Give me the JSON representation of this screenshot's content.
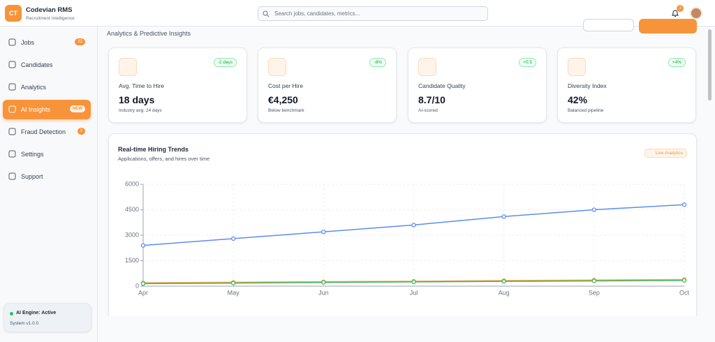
{
  "header": {
    "logo": "CT",
    "app_name": "Codevian RMS",
    "tagline": "Recruitment Intelligence",
    "search_placeholder": "Search jobs, candidates, metrics...",
    "notifications": "3"
  },
  "sidebar": {
    "items": [
      {
        "label": "Jobs",
        "badge": "12"
      },
      {
        "label": "Candidates"
      },
      {
        "label": "Analytics"
      },
      {
        "label": "AI Insights",
        "badge": "NEW"
      },
      {
        "label": "Fraud Detection",
        "badge": "3"
      },
      {
        "label": "Settings"
      },
      {
        "label": "Support"
      }
    ],
    "status": {
      "title": "AI Engine: Active",
      "version": "System v1.0.0"
    }
  },
  "page": {
    "subtitle": "Analytics & Predictive Insights"
  },
  "kpis": [
    {
      "label": "Avg. Time to Hire",
      "value": "18 days",
      "note": "Industry avg: 24 days",
      "change": "-2 days"
    },
    {
      "label": "Cost per Hire",
      "value": "€4,250",
      "note": "Below benchmark",
      "change": "-8%"
    },
    {
      "label": "Candidate Quality",
      "value": "8.7/10",
      "note": "AI-scored",
      "change": "+0.5"
    },
    {
      "label": "Diversity Index",
      "value": "42%",
      "note": "Balanced pipeline",
      "change": "+4%"
    }
  ],
  "chart_data": {
    "type": "line",
    "title": "Real-time Hiring Trends",
    "subtitle": "Applications, offers, and hires over time",
    "tag": "Live Analytics",
    "categories": [
      "Apr",
      "May",
      "Jun",
      "Jul",
      "Aug",
      "Sep",
      "Oct"
    ],
    "series": [
      {
        "color": "#5b8def",
        "values": [
          2400,
          2800,
          3200,
          3600,
          4100,
          4500,
          4800
        ]
      },
      {
        "color": "#f7a14a",
        "values": [
          200,
          230,
          260,
          290,
          330,
          360,
          390
        ]
      },
      {
        "color": "#3cb95b",
        "values": [
          150,
          180,
          220,
          250,
          280,
          310,
          340
        ]
      }
    ],
    "ylim": [
      0,
      6000
    ],
    "yticks": [
      0,
      1500,
      3000,
      4500,
      6000
    ],
    "grid": true
  }
}
